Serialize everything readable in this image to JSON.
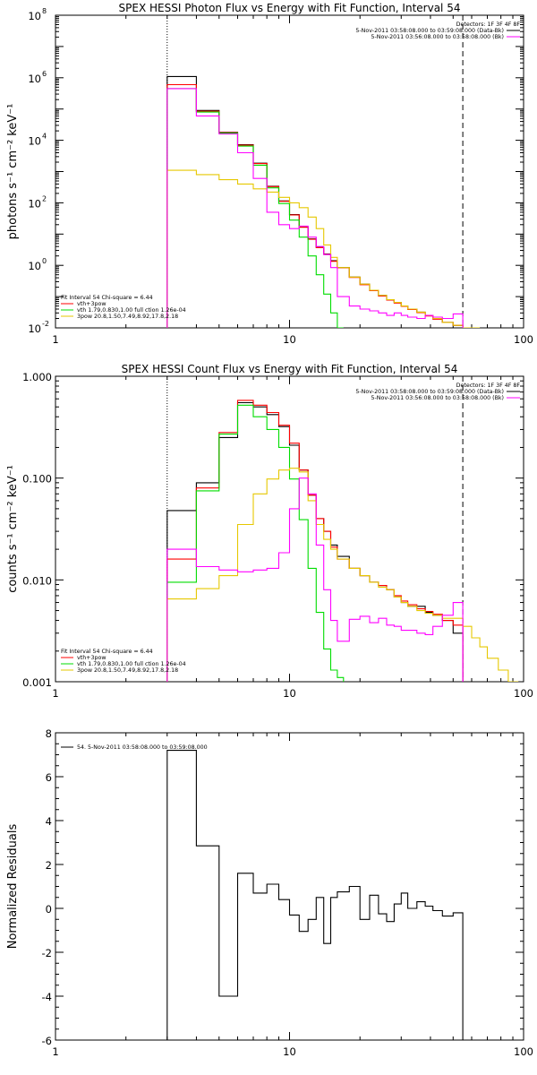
{
  "chart_data": [
    {
      "type": "line",
      "title": "SPEX HESSI Photon Flux vs Energy with Fit Function, Interval 54",
      "xlabel": "",
      "ylabel": "photons s⁻¹ cm⁻² keV⁻¹",
      "xscale": "log",
      "yscale": "log",
      "xlim": [
        1,
        100
      ],
      "ylim": [
        0.01,
        100000000
      ],
      "x_tick_labels": [
        {
          "v": 1,
          "t": "1"
        },
        {
          "v": 10,
          "t": "10"
        },
        {
          "v": 100,
          "t": "100"
        }
      ],
      "y_tick_labels": [
        {
          "v": 100000000,
          "t": "10",
          "e": "8"
        },
        {
          "v": 1000000,
          "t": "10",
          "e": "6"
        },
        {
          "v": 10000,
          "t": "10",
          "e": "4"
        },
        {
          "v": 100,
          "t": "10",
          "e": "2"
        },
        {
          "v": 1,
          "t": "10",
          "e": "0"
        },
        {
          "v": 0.01,
          "t": "10",
          "e": "-2"
        }
      ],
      "vlines": [
        {
          "x": 3.0,
          "style": "dotted"
        },
        {
          "x": 55,
          "style": "dashed"
        }
      ],
      "legend_right": {
        "detectors": "Detectors: 1F 3F 4F 8F",
        "entries": [
          {
            "text": "5-Nov-2011 03:58:08.000 to 03:59:08.000 (Data-Bk)",
            "color": "#000000"
          },
          {
            "text": "5-Nov-2011 03:56:08.000 to 03:58:08.000 (Bk)",
            "color": "#ff00ff"
          }
        ]
      },
      "legend_left": {
        "header": "Fit Interval 54   Chi-square = 6.44",
        "entries": [
          {
            "text": "vth+3pow",
            "color": "#ff0000"
          },
          {
            "text": "vth 1.79,0.830,1.00  full ction 1.26e-04",
            "color": "#00dd00"
          },
          {
            "text": "3pow 20.8,1.50,7.49,8.92,17.8,2.18",
            "color": "#e6c800"
          }
        ]
      },
      "series": [
        {
          "color": "#000000",
          "edges": [
            3,
            4,
            5,
            6,
            7,
            8,
            9,
            10,
            11,
            12,
            13,
            14,
            15,
            16,
            18,
            20,
            22,
            24,
            26,
            28,
            30,
            32,
            35,
            38,
            41,
            45,
            50,
            55
          ],
          "values": [
            1100000,
            90000,
            18000,
            7200,
            1850,
            340,
            115,
            42,
            17,
            7,
            3.8,
            2.3,
            1.4,
            0.85,
            0.42,
            0.25,
            0.16,
            0.11,
            0.08,
            0.065,
            0.05,
            0.04,
            0.032,
            0.025,
            0.02,
            0.015,
            0.012
          ]
        },
        {
          "color": "#ff0000",
          "edges": [
            3,
            4,
            5,
            6,
            7,
            8,
            9,
            10,
            11,
            12,
            13,
            14,
            15,
            16,
            18,
            20,
            22,
            24,
            26,
            28,
            30,
            32,
            35,
            38,
            41,
            45,
            50,
            55
          ],
          "values": [
            600000,
            85000,
            17500,
            7000,
            1800,
            330,
            112,
            41,
            16.5,
            6.8,
            3.7,
            2.25,
            1.35,
            0.83,
            0.41,
            0.24,
            0.155,
            0.105,
            0.078,
            0.062,
            0.049,
            0.039,
            0.031,
            0.024,
            0.019,
            0.015,
            0.012
          ]
        },
        {
          "color": "#00dd00",
          "edges": [
            3,
            4,
            5,
            6,
            7,
            8,
            9,
            10,
            11,
            12,
            13,
            14,
            15,
            16,
            17
          ],
          "values": [
            450000,
            80000,
            17000,
            6500,
            1600,
            300,
            95,
            28,
            8,
            2,
            0.5,
            0.12,
            0.03,
            0.01
          ]
        },
        {
          "color": "#e6c800",
          "edges": [
            3,
            4,
            5,
            6,
            7,
            8,
            9,
            10,
            11,
            12,
            13,
            14,
            15,
            16,
            18,
            20,
            22,
            24,
            26,
            28,
            30,
            32,
            35,
            38,
            41,
            45,
            50,
            55,
            60,
            65
          ],
          "values": [
            1100,
            800,
            550,
            400,
            280,
            220,
            150,
            100,
            70,
            35,
            15,
            4.5,
            1.8,
            0.85,
            0.42,
            0.25,
            0.16,
            0.11,
            0.08,
            0.065,
            0.05,
            0.04,
            0.032,
            0.025,
            0.02,
            0.015,
            0.012,
            0.01,
            0.009
          ]
        },
        {
          "color": "#ff00ff",
          "edges": [
            3,
            4,
            5,
            6,
            7,
            8,
            9,
            10,
            11,
            12,
            13,
            14,
            15,
            16,
            18,
            20,
            22,
            24,
            26,
            28,
            30,
            32,
            35,
            38,
            41,
            45,
            50,
            55
          ],
          "values": [
            450000,
            60000,
            16000,
            4000,
            600,
            50,
            20,
            15,
            18,
            8,
            4,
            2.2,
            0.85,
            0.1,
            0.05,
            0.04,
            0.035,
            0.03,
            0.025,
            0.03,
            0.025,
            0.022,
            0.02,
            0.025,
            0.022,
            0.02,
            0.028
          ]
        }
      ]
    },
    {
      "type": "line",
      "title": "SPEX HESSI Count Flux vs Energy with Fit Function, Interval 54",
      "xlabel": "",
      "ylabel": "counts s⁻¹ cm⁻² keV⁻¹",
      "xscale": "log",
      "yscale": "log",
      "xlim": [
        1,
        100
      ],
      "ylim": [
        0.001,
        1
      ],
      "x_tick_labels": [
        {
          "v": 1,
          "t": "1"
        },
        {
          "v": 10,
          "t": "10"
        },
        {
          "v": 100,
          "t": "100"
        }
      ],
      "y_tick_labels": [
        {
          "v": 1,
          "t": "1.000"
        },
        {
          "v": 0.1,
          "t": "0.100"
        },
        {
          "v": 0.01,
          "t": "0.010"
        },
        {
          "v": 0.001,
          "t": "0.001"
        }
      ],
      "vlines": [
        {
          "x": 3.0,
          "style": "dotted"
        },
        {
          "x": 55,
          "style": "dashed"
        }
      ],
      "legend_right": {
        "detectors": "Detectors: 1F 3F 4F 8F",
        "entries": [
          {
            "text": "5-Nov-2011 03:58:08.000 to 03:59:08.000 (Data-Bk)",
            "color": "#000000"
          },
          {
            "text": "5-Nov-2011 03:56:08.000 to 03:58:08.000 (Bk)",
            "color": "#ff00ff"
          }
        ]
      },
      "legend_left": {
        "header": "Fit Interval 54   Chi-square = 6.44",
        "entries": [
          {
            "text": "vth+3pow",
            "color": "#ff0000"
          },
          {
            "text": "vth 1.79,0.830,1.00  full ction 1.26e-04",
            "color": "#00dd00"
          },
          {
            "text": "3pow 20.8,1.50,7.49,8.92,17.8,2.18",
            "color": "#e6c800"
          }
        ]
      },
      "series": [
        {
          "color": "#000000",
          "edges": [
            3,
            4,
            5,
            6,
            7,
            8,
            9,
            10,
            11,
            12,
            13,
            14,
            15,
            16,
            18,
            20,
            22,
            24,
            26,
            28,
            30,
            32,
            35,
            38,
            41,
            45,
            50,
            55
          ],
          "values": [
            0.048,
            0.09,
            0.25,
            0.55,
            0.5,
            0.42,
            0.32,
            0.21,
            0.12,
            0.068,
            0.04,
            0.03,
            0.022,
            0.017,
            0.013,
            0.011,
            0.0095,
            0.0088,
            0.008,
            0.0068,
            0.006,
            0.0055,
            0.0055,
            0.0048,
            0.0045,
            0.004,
            0.003
          ]
        },
        {
          "color": "#ff0000",
          "edges": [
            3,
            4,
            5,
            6,
            7,
            8,
            9,
            10,
            11,
            12,
            13,
            14,
            15,
            16,
            18,
            20,
            22,
            24,
            26,
            28,
            30,
            32,
            35,
            38,
            41,
            45,
            50,
            55
          ],
          "values": [
            0.016,
            0.08,
            0.28,
            0.58,
            0.52,
            0.44,
            0.33,
            0.22,
            0.12,
            0.068,
            0.04,
            0.03,
            0.021,
            0.016,
            0.013,
            0.011,
            0.0095,
            0.0088,
            0.008,
            0.007,
            0.0062,
            0.0057,
            0.0052,
            0.0049,
            0.0046,
            0.004,
            0.0036
          ]
        },
        {
          "color": "#00dd00",
          "edges": [
            3,
            4,
            5,
            6,
            7,
            8,
            9,
            10,
            11,
            12,
            13,
            14,
            15,
            16,
            17
          ],
          "values": [
            0.0095,
            0.075,
            0.27,
            0.52,
            0.4,
            0.3,
            0.2,
            0.098,
            0.039,
            0.013,
            0.0048,
            0.0021,
            0.0013,
            0.0011
          ]
        },
        {
          "color": "#e6c800",
          "edges": [
            3,
            4,
            5,
            6,
            7,
            8,
            9,
            10,
            11,
            12,
            13,
            14,
            15,
            16,
            18,
            20,
            22,
            24,
            26,
            28,
            30,
            32,
            35,
            38,
            41,
            45,
            50,
            55,
            60,
            65,
            70,
            78,
            86,
            95
          ],
          "values": [
            0.0065,
            0.0082,
            0.011,
            0.035,
            0.07,
            0.098,
            0.12,
            0.125,
            0.115,
            0.06,
            0.035,
            0.025,
            0.02,
            0.016,
            0.013,
            0.011,
            0.0095,
            0.0085,
            0.008,
            0.0068,
            0.006,
            0.0055,
            0.005,
            0.0047,
            0.0045,
            0.0042,
            0.0042,
            0.0035,
            0.0027,
            0.0022,
            0.0017,
            0.0013,
            0.001
          ]
        },
        {
          "color": "#ff00ff",
          "edges": [
            3,
            4,
            5,
            6,
            7,
            8,
            9,
            10,
            11,
            12,
            13,
            14,
            15,
            16,
            18,
            20,
            22,
            24,
            26,
            28,
            30,
            32,
            35,
            38,
            41,
            45,
            50,
            55
          ],
          "values": [
            0.02,
            0.0135,
            0.0125,
            0.012,
            0.0125,
            0.013,
            0.0185,
            0.05,
            0.1,
            0.07,
            0.022,
            0.008,
            0.004,
            0.0025,
            0.0041,
            0.0044,
            0.0038,
            0.0042,
            0.0036,
            0.0035,
            0.0032,
            0.0032,
            0.003,
            0.0029,
            0.0035,
            0.0045,
            0.006
          ]
        }
      ]
    },
    {
      "type": "line",
      "title": "",
      "xlabel": "",
      "ylabel": "Normalized Residuals",
      "xscale": "log",
      "yscale": "linear",
      "xlim": [
        1,
        100
      ],
      "ylim": [
        -6,
        8
      ],
      "x_tick_labels": [
        {
          "v": 1,
          "t": "1"
        },
        {
          "v": 10,
          "t": "10"
        },
        {
          "v": 100,
          "t": "100"
        }
      ],
      "y_tick_labels": [
        {
          "v": 8,
          "t": "8"
        },
        {
          "v": 6,
          "t": "6"
        },
        {
          "v": 4,
          "t": "4"
        },
        {
          "v": 2,
          "t": "2"
        },
        {
          "v": 0,
          "t": "0"
        },
        {
          "v": -2,
          "t": "-2"
        },
        {
          "v": -4,
          "t": "-4"
        },
        {
          "v": -6,
          "t": "-6"
        }
      ],
      "legend_left": {
        "header": "",
        "entries": [
          {
            "text": "54.  5-Nov-2011 03:58:08.000 to 03:59:08.000",
            "color": "#000000"
          }
        ]
      },
      "series": [
        {
          "color": "#000000",
          "edges": [
            3,
            4,
            5,
            6,
            7,
            8,
            9,
            10,
            11,
            12,
            13,
            14,
            15,
            16,
            18,
            20,
            22,
            24,
            26,
            28,
            30,
            32,
            35,
            38,
            41,
            45,
            50,
            55
          ],
          "values": [
            7.2,
            2.85,
            -4.0,
            1.6,
            0.7,
            1.1,
            0.4,
            -0.3,
            -1.05,
            -0.5,
            0.5,
            -1.6,
            0.5,
            0.75,
            1.0,
            -0.5,
            0.6,
            -0.25,
            -0.6,
            0.2,
            0.7,
            0.0,
            0.3,
            0.1,
            -0.1,
            -0.35,
            -0.2
          ],
          "close_to_bottom": true
        }
      ]
    }
  ]
}
